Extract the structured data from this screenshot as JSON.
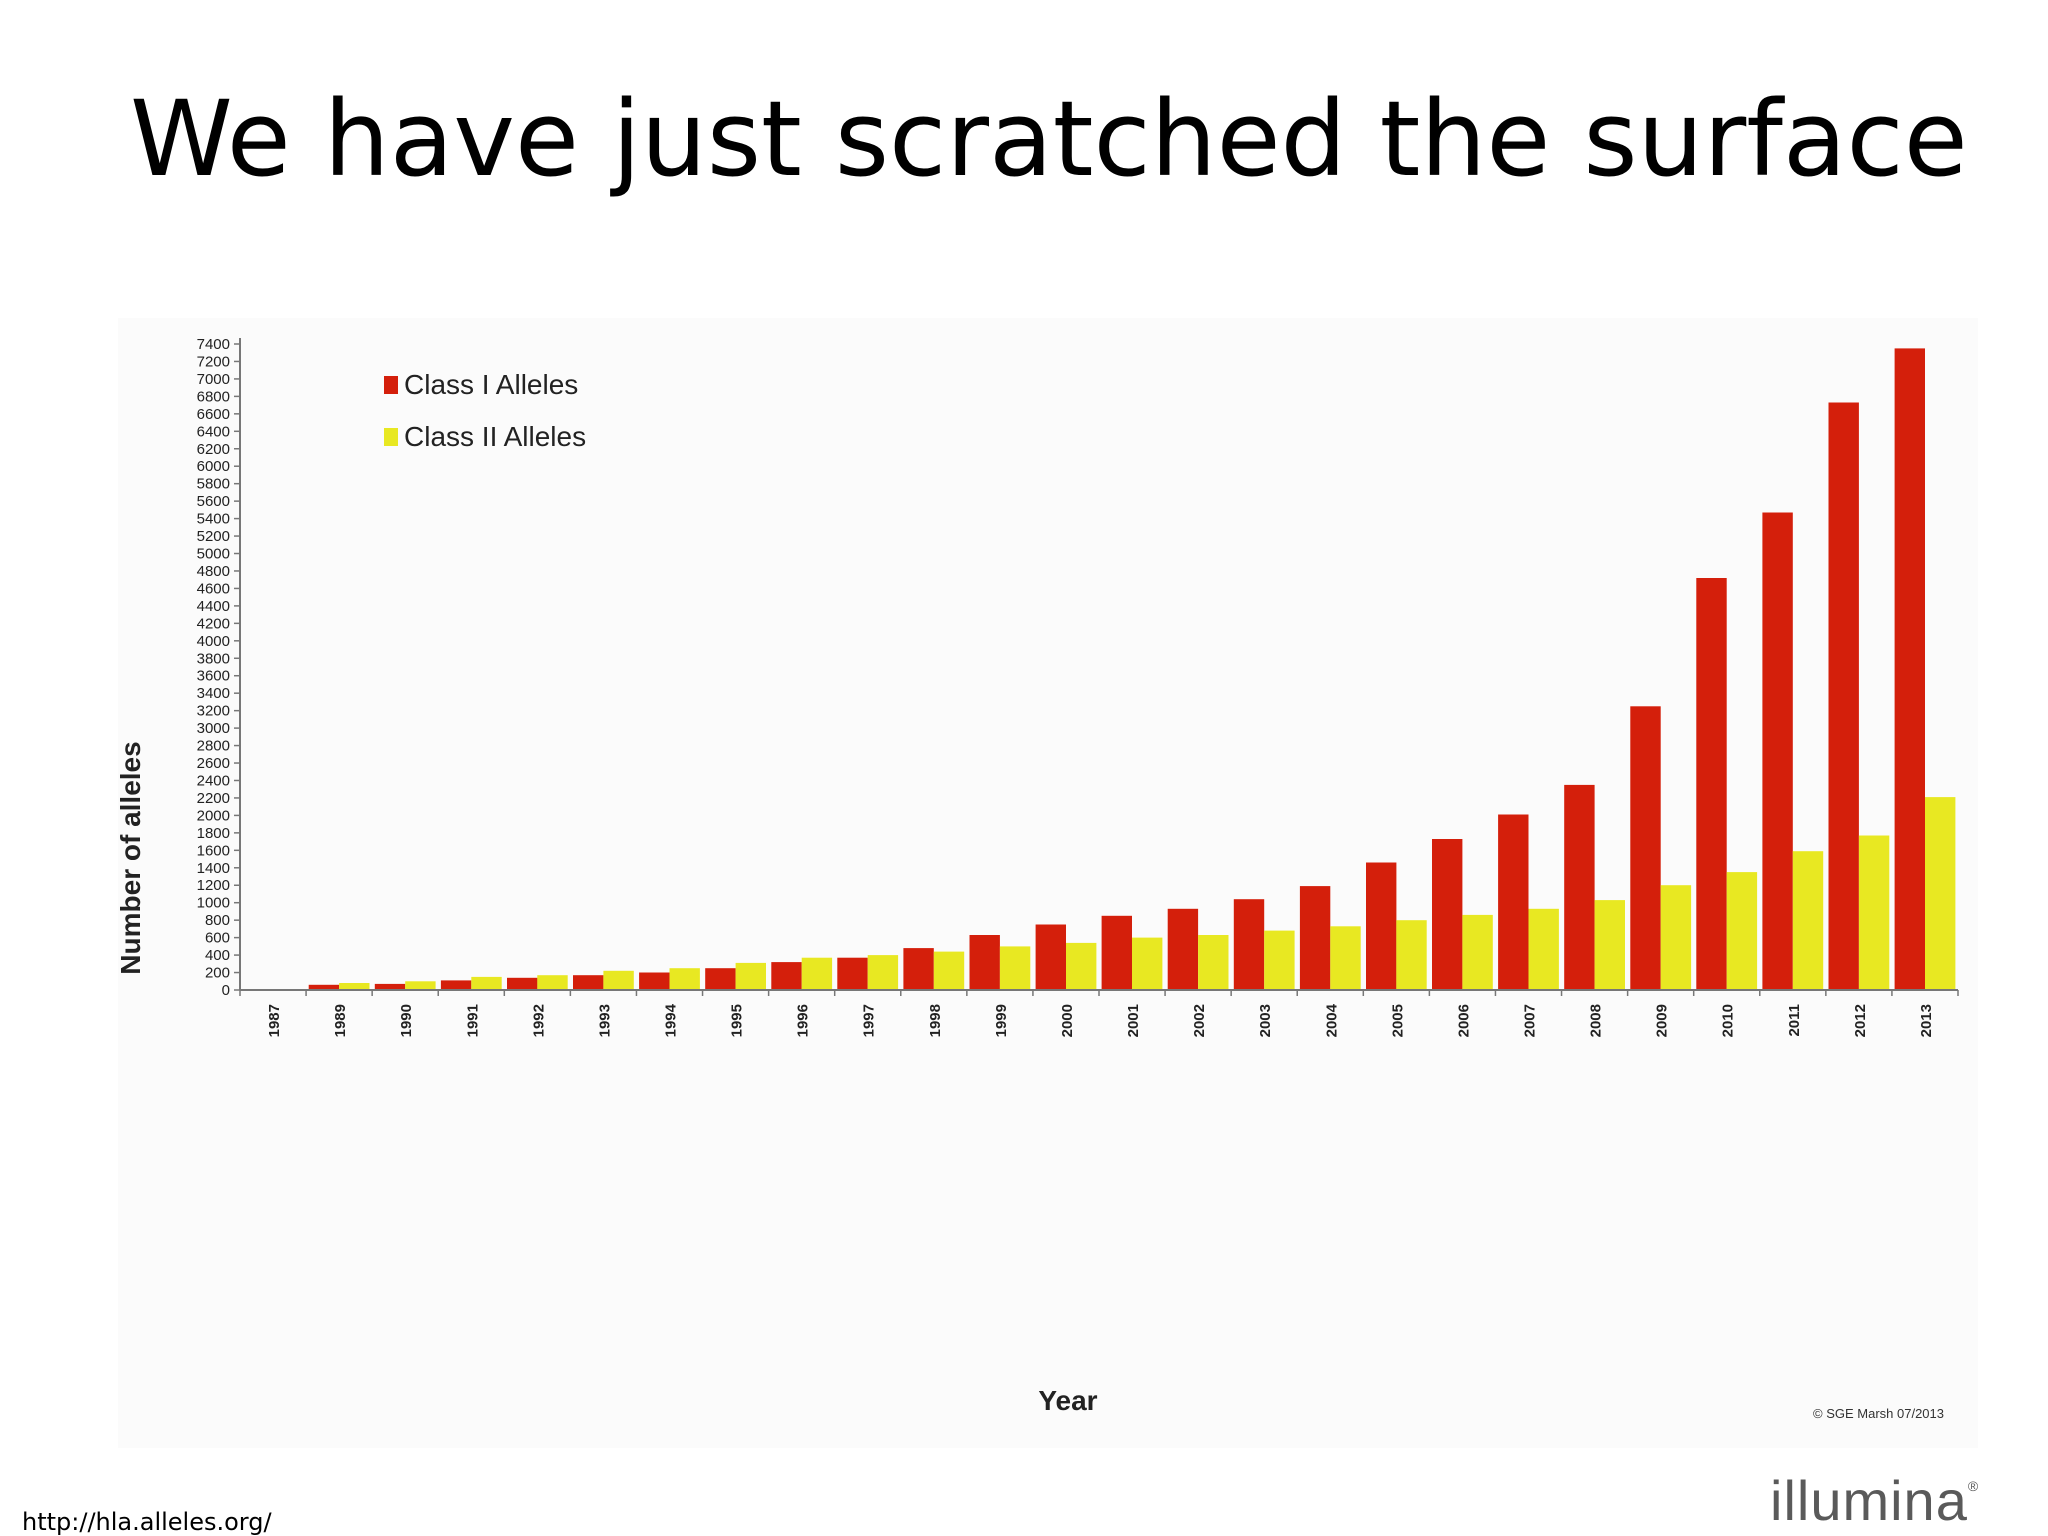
{
  "title": "We have just scratched the surface",
  "footer": {
    "source": "http://hla.alleles.org/",
    "logo": "illumina"
  },
  "colors": {
    "class1": "#d41f0b",
    "class2": "#e8e822"
  },
  "chart_data": {
    "type": "bar",
    "xlabel": "Year",
    "ylabel": "Number of alleles",
    "ylim": [
      0,
      7400
    ],
    "ytick_step": 200,
    "grid": false,
    "legend": "top-left",
    "credit": "© SGE Marsh 07/2013",
    "categories": [
      "1987",
      "1989",
      "1990",
      "1991",
      "1992",
      "1993",
      "1994",
      "1995",
      "1996",
      "1997",
      "1998",
      "1999",
      "2000",
      "2001",
      "2002",
      "2003",
      "2004",
      "2005",
      "2006",
      "2007",
      "2008",
      "2009",
      "2010",
      "2011",
      "2012",
      "2013"
    ],
    "series": [
      {
        "name": "Class I Alleles",
        "values": [
          10,
          60,
          70,
          110,
          140,
          170,
          200,
          250,
          320,
          370,
          480,
          630,
          750,
          850,
          930,
          1040,
          1190,
          1460,
          1730,
          2010,
          2350,
          3250,
          4720,
          5470,
          6730,
          7350
        ]
      },
      {
        "name": "Class II Alleles",
        "values": [
          0,
          80,
          100,
          150,
          170,
          220,
          250,
          310,
          370,
          400,
          440,
          500,
          540,
          600,
          630,
          680,
          730,
          800,
          860,
          930,
          1030,
          1200,
          1350,
          1590,
          1770,
          2210
        ]
      }
    ]
  }
}
